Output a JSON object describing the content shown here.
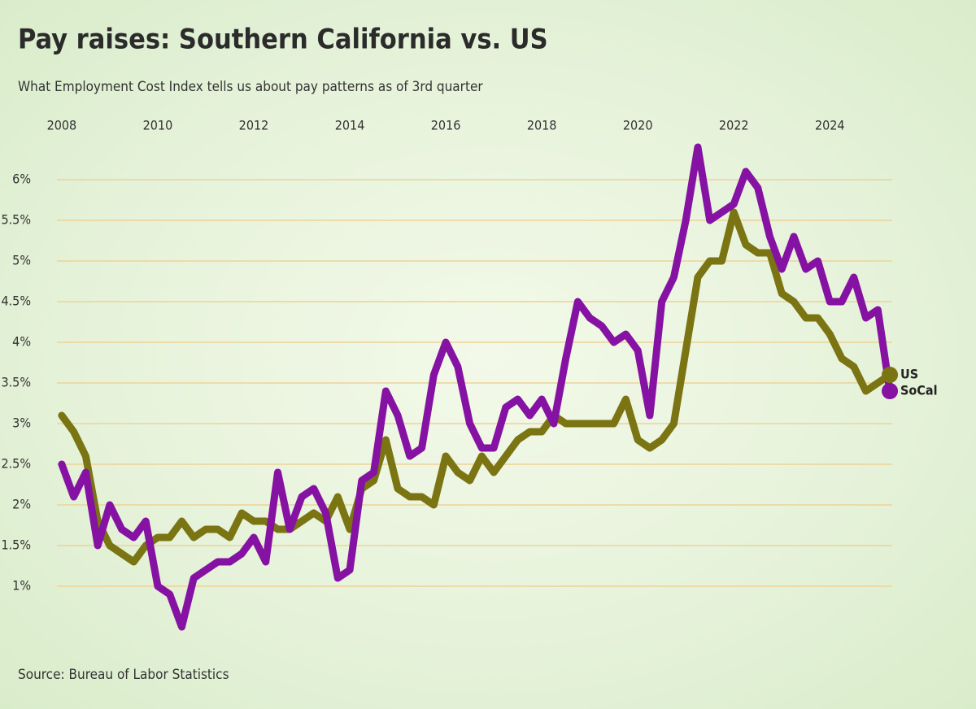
{
  "chart_data": {
    "type": "line",
    "title": "Pay raises: Southern California vs. US",
    "subtitle": "What Employment Cost Index tells us about pay patterns as of 3rd quarter",
    "source": "Source: Bureau of Labor Statistics",
    "x": [
      2008,
      2008.25,
      2008.5,
      2008.75,
      2009,
      2009.25,
      2009.5,
      2009.75,
      2010,
      2010.25,
      2010.5,
      2010.75,
      2011,
      2011.25,
      2011.5,
      2011.75,
      2012,
      2012.25,
      2012.5,
      2012.75,
      2013,
      2013.25,
      2013.5,
      2013.75,
      2014,
      2014.25,
      2014.5,
      2014.75,
      2015,
      2015.25,
      2015.5,
      2015.75,
      2016,
      2016.25,
      2016.5,
      2016.75,
      2017,
      2017.25,
      2017.5,
      2017.75,
      2018,
      2018.25,
      2018.5,
      2018.75,
      2019,
      2019.25,
      2019.5,
      2019.75,
      2020,
      2020.25,
      2020.5,
      2020.75,
      2021,
      2021.25,
      2021.5,
      2021.75,
      2022,
      2022.25,
      2022.5,
      2022.75,
      2023,
      2023.25,
      2023.5,
      2023.75,
      2024,
      2024.25,
      2024.5,
      2024.75,
      2025,
      2025.25
    ],
    "series": [
      {
        "name": "US",
        "color": "#7a7412",
        "values": [
          3.1,
          2.9,
          2.6,
          1.8,
          1.5,
          1.4,
          1.3,
          1.5,
          1.6,
          1.6,
          1.8,
          1.6,
          1.7,
          1.7,
          1.6,
          1.9,
          1.8,
          1.8,
          1.7,
          1.7,
          1.8,
          1.9,
          1.8,
          2.1,
          1.7,
          2.2,
          2.3,
          2.8,
          2.2,
          2.1,
          2.1,
          2.0,
          2.6,
          2.4,
          2.3,
          2.6,
          2.4,
          2.6,
          2.8,
          2.9,
          2.9,
          3.1,
          3.0,
          3.0,
          3.0,
          3.0,
          3.0,
          3.3,
          2.8,
          2.7,
          2.8,
          3.0,
          3.9,
          4.8,
          5.0,
          5.0,
          5.6,
          5.2,
          5.1,
          5.1,
          4.6,
          4.5,
          4.3,
          4.3,
          4.1,
          3.8,
          3.7,
          3.4,
          3.5,
          3.6
        ]
      },
      {
        "name": "SoCal",
        "color": "#8512a3",
        "values": [
          2.5,
          2.1,
          2.4,
          1.5,
          2.0,
          1.7,
          1.6,
          1.8,
          1.0,
          0.9,
          0.5,
          1.1,
          1.2,
          1.3,
          1.3,
          1.4,
          1.6,
          1.3,
          2.4,
          1.7,
          2.1,
          2.2,
          1.9,
          1.1,
          1.2,
          2.3,
          2.4,
          3.4,
          3.1,
          2.6,
          2.7,
          3.6,
          4.0,
          3.7,
          3.0,
          2.7,
          2.7,
          3.2,
          3.3,
          3.1,
          3.3,
          3.0,
          3.8,
          4.5,
          4.3,
          4.2,
          4.0,
          4.1,
          3.9,
          3.1,
          4.5,
          4.8,
          5.5,
          6.4,
          5.5,
          5.6,
          5.7,
          6.1,
          5.9,
          5.3,
          4.9,
          5.3,
          4.9,
          5.0,
          4.5,
          4.5,
          4.8,
          4.3,
          4.4,
          3.4
        ]
      }
    ],
    "xlim": [
      2007.9,
      2025.3
    ],
    "xticks": [
      2008,
      2010,
      2012,
      2014,
      2016,
      2018,
      2020,
      2022,
      2024
    ],
    "ylim": [
      0.6,
      6.5
    ],
    "yticks": [
      {
        "value": 1,
        "label": "1%"
      },
      {
        "value": 1.5,
        "label": "1.5%"
      },
      {
        "value": 2,
        "label": "2%"
      },
      {
        "value": 2.5,
        "label": "2.5%"
      },
      {
        "value": 3,
        "label": "3%"
      },
      {
        "value": 3.5,
        "label": "3.5%"
      },
      {
        "value": 4,
        "label": "4%"
      },
      {
        "value": 4.5,
        "label": "4.5%"
      },
      {
        "value": 5,
        "label": "5%"
      },
      {
        "value": 5.5,
        "label": "5.5%"
      },
      {
        "value": 6,
        "label": "6%"
      }
    ],
    "grid": true
  }
}
